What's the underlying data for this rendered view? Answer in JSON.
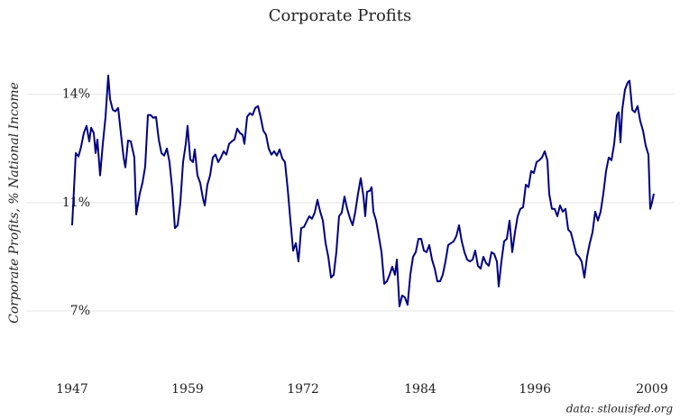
{
  "chart_data": {
    "type": "line",
    "title": "Corporate Profits",
    "y_axis_label": "Corporate Profits, % National Income",
    "source": "data: stlouisfed.org",
    "color": "#000080",
    "grid": true,
    "xlim": [
      1947,
      2009.2
    ],
    "xticks": [
      1947,
      {
        "value": 1959.34,
        "label": "1959"
      },
      {
        "value": 1971.69,
        "label": "1972"
      },
      {
        "value": 1984.22,
        "label": "1984"
      },
      {
        "value": 1996.49,
        "label": "1996"
      },
      2009
    ],
    "ylim": [
      5.4,
      15.3
    ],
    "yticks": [
      {
        "value": 14,
        "label": "14%"
      },
      {
        "value": 10.5,
        "label": "11%"
      },
      {
        "value": 7,
        "label": "7%"
      }
    ],
    "x": [
      1947.0,
      1947.39,
      1947.68,
      1947.96,
      1948.25,
      1948.54,
      1948.83,
      1949.03,
      1949.31,
      1949.51,
      1949.7,
      1949.99,
      1950.28,
      1950.57,
      1950.86,
      1951.05,
      1951.34,
      1951.63,
      1951.92,
      1952.21,
      1952.5,
      1952.69,
      1952.98,
      1953.27,
      1953.65,
      1953.85,
      1954.23,
      1954.52,
      1954.81,
      1955.1,
      1955.39,
      1955.68,
      1955.97,
      1956.26,
      1956.55,
      1956.84,
      1957.13,
      1957.41,
      1957.7,
      1957.99,
      1958.28,
      1958.57,
      1958.86,
      1959.15,
      1959.34,
      1959.63,
      1959.92,
      1960.11,
      1960.4,
      1960.69,
      1960.98,
      1961.18,
      1961.46,
      1961.75,
      1962.04,
      1962.33,
      1962.62,
      1962.91,
      1963.2,
      1963.49,
      1963.78,
      1964.07,
      1964.36,
      1964.65,
      1964.94,
      1965.23,
      1965.42,
      1965.71,
      1966.0,
      1966.29,
      1966.58,
      1966.87,
      1967.15,
      1967.44,
      1967.73,
      1968.02,
      1968.31,
      1968.6,
      1968.89,
      1969.18,
      1969.47,
      1969.76,
      1970.05,
      1970.34,
      1970.63,
      1970.92,
      1971.2,
      1971.49,
      1971.78,
      1972.07,
      1972.36,
      1972.65,
      1972.94,
      1973.23,
      1973.52,
      1973.81,
      1974.1,
      1974.39,
      1974.68,
      1974.97,
      1975.25,
      1975.54,
      1975.83,
      1976.12,
      1976.41,
      1976.7,
      1976.99,
      1977.28,
      1977.57,
      1977.86,
      1978.15,
      1978.34,
      1978.53,
      1978.82,
      1979.02,
      1979.21,
      1979.5,
      1979.79,
      1980.08,
      1980.37,
      1980.66,
      1980.94,
      1981.23,
      1981.52,
      1981.72,
      1982.0,
      1982.29,
      1982.58,
      1982.87,
      1983.16,
      1983.45,
      1983.74,
      1984.03,
      1984.32,
      1984.61,
      1984.9,
      1985.19,
      1985.48,
      1985.77,
      1986.05,
      1986.34,
      1986.63,
      1986.92,
      1987.21,
      1987.5,
      1987.79,
      1988.08,
      1988.37,
      1988.66,
      1988.95,
      1989.24,
      1989.53,
      1989.82,
      1990.1,
      1990.39,
      1990.68,
      1990.97,
      1991.26,
      1991.55,
      1991.84,
      1992.13,
      1992.42,
      1992.61,
      1992.9,
      1993.19,
      1993.48,
      1993.77,
      1994.06,
      1994.35,
      1994.64,
      1994.93,
      1995.22,
      1995.51,
      1995.8,
      1996.08,
      1996.37,
      1996.66,
      1996.95,
      1997.24,
      1997.53,
      1997.82,
      1998.01,
      1998.3,
      1998.59,
      1998.88,
      1999.17,
      1999.46,
      1999.75,
      2000.04,
      2000.33,
      2000.62,
      2000.91,
      2001.2,
      2001.48,
      2001.77,
      2002.06,
      2002.35,
      2002.64,
      2002.93,
      2003.22,
      2003.51,
      2003.8,
      2004.09,
      2004.38,
      2004.67,
      2004.96,
      2005.25,
      2005.44,
      2005.63,
      2005.82,
      2006.11,
      2006.4,
      2006.6,
      2006.89,
      2007.17,
      2007.46,
      2007.75,
      2008.04,
      2008.33,
      2008.62,
      2008.81,
      2009.0,
      2009.2
    ],
    "values": [
      9.77,
      12.1,
      11.99,
      12.31,
      12.75,
      12.98,
      12.48,
      12.92,
      12.75,
      12.1,
      12.54,
      11.38,
      12.4,
      13.27,
      14.61,
      13.85,
      13.5,
      13.45,
      13.56,
      12.75,
      11.96,
      11.64,
      12.51,
      12.48,
      11.96,
      10.12,
      10.79,
      11.14,
      11.67,
      13.33,
      13.33,
      13.24,
      13.27,
      12.54,
      12.1,
      12.02,
      12.25,
      11.81,
      10.94,
      9.68,
      9.77,
      10.5,
      11.81,
      12.4,
      12.98,
      11.9,
      11.81,
      12.22,
      11.38,
      11.14,
      10.65,
      10.41,
      11.08,
      11.38,
      11.96,
      12.05,
      11.81,
      11.96,
      12.16,
      12.05,
      12.4,
      12.48,
      12.54,
      12.89,
      12.75,
      12.69,
      12.4,
      13.27,
      13.39,
      13.33,
      13.56,
      13.62,
      13.27,
      12.83,
      12.69,
      12.25,
      12.05,
      12.16,
      12.02,
      12.22,
      11.93,
      11.81,
      10.94,
      9.92,
      8.95,
      9.19,
      8.6,
      9.68,
      9.71,
      9.89,
      10.06,
      9.98,
      10.18,
      10.59,
      10.21,
      9.92,
      9.19,
      8.75,
      8.08,
      8.17,
      8.9,
      10.06,
      10.18,
      10.7,
      10.3,
      10.0,
      9.77,
      10.21,
      10.79,
      11.29,
      10.7,
      10.06,
      10.85,
      10.88,
      11.0,
      10.21,
      9.92,
      9.42,
      8.9,
      7.88,
      7.96,
      8.17,
      8.43,
      8.17,
      8.66,
      7.15,
      7.5,
      7.44,
      7.2,
      8.17,
      8.75,
      8.9,
      9.33,
      9.33,
      8.95,
      8.9,
      9.13,
      8.66,
      8.37,
      7.96,
      7.96,
      8.17,
      8.6,
      9.13,
      9.19,
      9.25,
      9.42,
      9.77,
      9.25,
      8.9,
      8.66,
      8.6,
      8.66,
      8.95,
      8.46,
      8.37,
      8.75,
      8.55,
      8.46,
      8.9,
      8.84,
      8.6,
      7.79,
      8.6,
      9.25,
      9.33,
      9.92,
      8.9,
      9.54,
      10.06,
      10.3,
      10.35,
      11.08,
      11.0,
      11.52,
      11.46,
      11.81,
      11.87,
      11.96,
      12.16,
      11.87,
      10.79,
      10.3,
      10.3,
      10.06,
      10.41,
      10.21,
      10.3,
      9.63,
      9.54,
      9.19,
      8.84,
      8.75,
      8.6,
      8.08,
      8.75,
      9.19,
      9.54,
      10.21,
      9.92,
      10.21,
      10.79,
      11.52,
      11.96,
      11.87,
      12.4,
      13.33,
      13.42,
      12.45,
      13.5,
      14.15,
      14.38,
      14.44,
      13.5,
      13.42,
      13.62,
      13.13,
      12.83,
      12.34,
      12.05,
      10.3,
      10.5,
      10.79
    ]
  }
}
